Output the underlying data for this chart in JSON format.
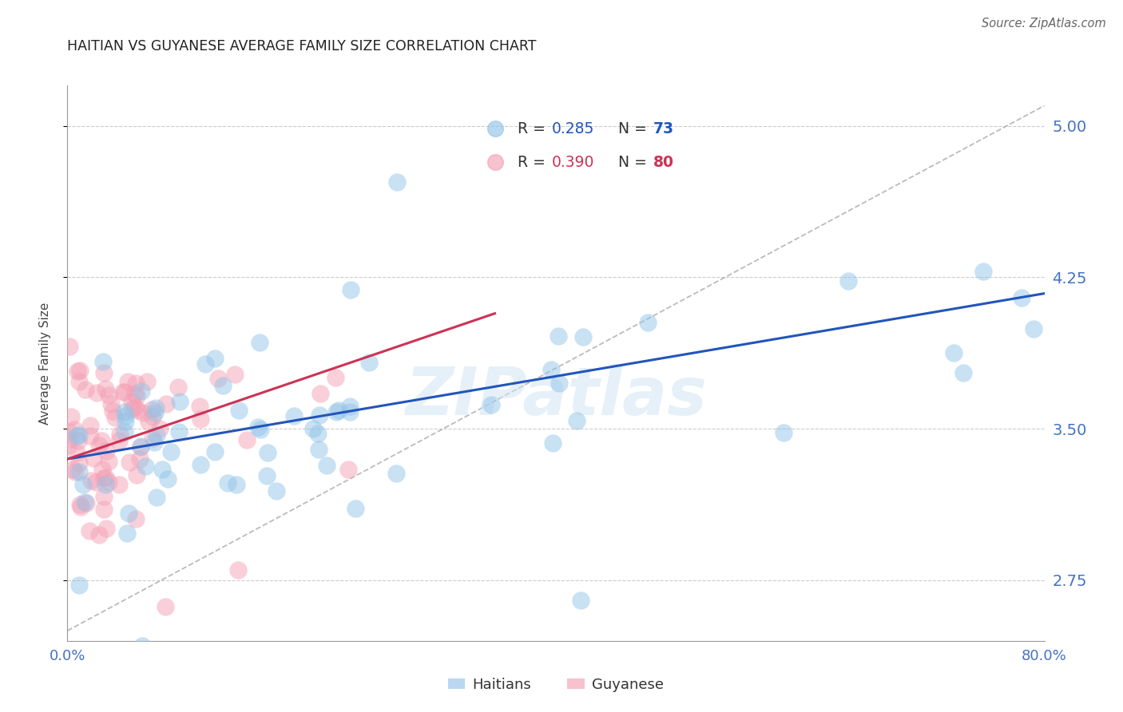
{
  "title": "HAITIAN VS GUYANESE AVERAGE FAMILY SIZE CORRELATION CHART",
  "source": "Source: ZipAtlas.com",
  "ylabel": "Average Family Size",
  "xlim": [
    0.0,
    0.8
  ],
  "ylim": [
    2.45,
    5.2
  ],
  "yticks": [
    2.75,
    3.5,
    4.25,
    5.0
  ],
  "xticks": [
    0.0,
    0.1,
    0.2,
    0.3,
    0.4,
    0.5,
    0.6,
    0.7,
    0.8
  ],
  "blue_color": "#93c4e8",
  "pink_color": "#f4a0b5",
  "blue_line_color": "#2255bb",
  "pink_line_color": "#cc3355",
  "axis_color": "#4472c4",
  "grid_color": "#cccccc",
  "title_color": "#222222",
  "watermark": "ZIPatlas",
  "haitians_label": "Haitians",
  "guyanese_label": "Guyanese",
  "legend_blue_r": "0.285",
  "legend_blue_n": "73",
  "legend_pink_r": "0.390",
  "legend_pink_n": "80",
  "blue_intercept": 3.35,
  "blue_slope": 1.025,
  "pink_intercept": 3.35,
  "pink_slope": 2.06,
  "ref_line_x": [
    0.0,
    0.8
  ],
  "ref_line_y": [
    2.5,
    5.1
  ]
}
